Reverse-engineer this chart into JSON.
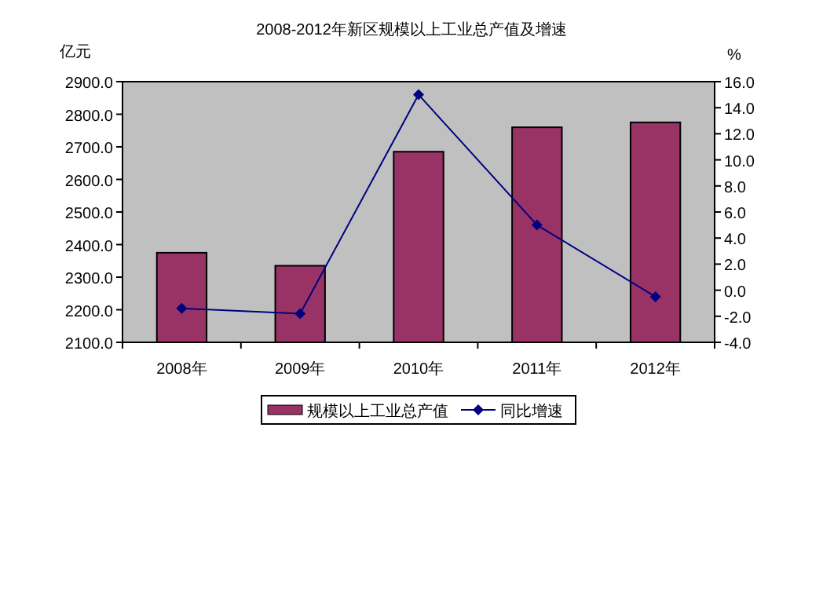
{
  "chart_data": {
    "type": "bar",
    "title": "2008-2012年新区规模以上工业总产值及增速",
    "ylabel": "亿元",
    "y2label": "%",
    "categories": [
      "2008年",
      "2009年",
      "2010年",
      "2011年",
      "2012年"
    ],
    "series": [
      {
        "name": "规模以上工业总产值",
        "color": "#993366",
        "values": [
          2375,
          2335,
          2685,
          2760,
          2775
        ]
      },
      {
        "name": "同比增速",
        "type": "line",
        "axis": "y2",
        "color": "#000080",
        "marker": "diamond",
        "values": [
          -1.4,
          -1.8,
          15.0,
          5.0,
          -0.5
        ]
      }
    ],
    "ylim": [
      2100,
      2900
    ],
    "yticks": [
      {
        "value": 2100,
        "label": "2100.0"
      },
      {
        "value": 2200,
        "label": "2200.0"
      },
      {
        "value": 2300,
        "label": "2300.0"
      },
      {
        "value": 2400,
        "label": "2400.0"
      },
      {
        "value": 2500,
        "label": "2500.0"
      },
      {
        "value": 2600,
        "label": "2600.0"
      },
      {
        "value": 2700,
        "label": "2700.0"
      },
      {
        "value": 2800,
        "label": "2800.0"
      },
      {
        "value": 2900,
        "label": "2900.0"
      }
    ],
    "y2lim": [
      -4,
      16
    ],
    "y2ticks": [
      {
        "value": -4,
        "label": "-4.0"
      },
      {
        "value": -2,
        "label": "-2.0"
      },
      {
        "value": 0,
        "label": "0.0"
      },
      {
        "value": 2,
        "label": "2.0"
      },
      {
        "value": 4,
        "label": "4.0"
      },
      {
        "value": 6,
        "label": "6.0"
      },
      {
        "value": 8,
        "label": "8.0"
      },
      {
        "value": 10,
        "label": "10.0"
      },
      {
        "value": 12,
        "label": "12.0"
      },
      {
        "value": 14,
        "label": "14.0"
      },
      {
        "value": 16,
        "label": "16.0"
      }
    ],
    "grid": false,
    "legend": "bottom"
  }
}
